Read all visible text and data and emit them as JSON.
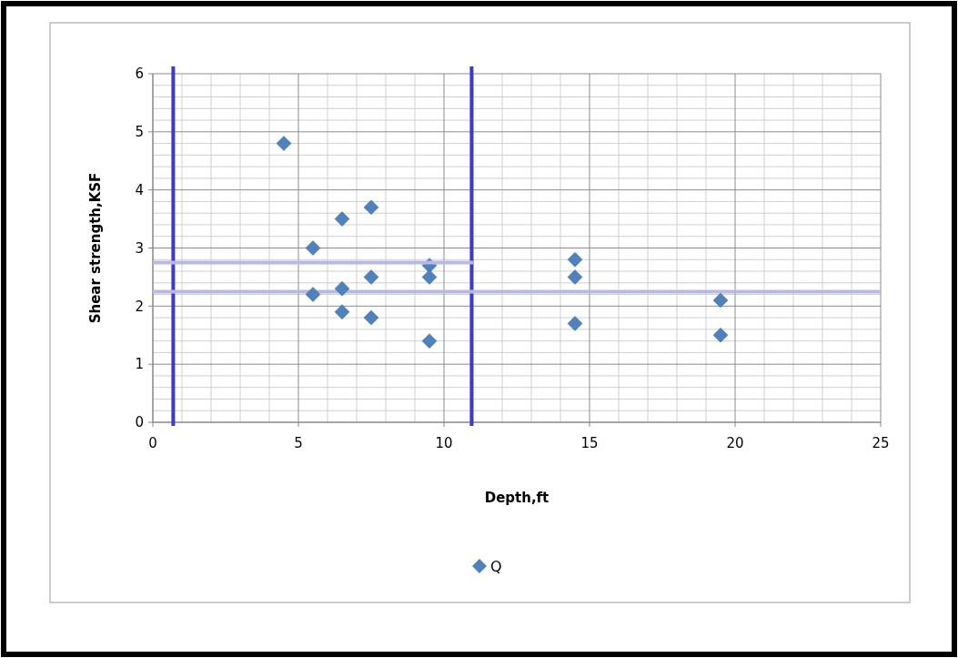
{
  "chart_data": {
    "type": "scatter",
    "xlabel": "Depth,ft",
    "ylabel": "Shear strength,KSF",
    "xlim": [
      0,
      25
    ],
    "xticks": [
      0,
      5,
      10,
      15,
      20,
      25
    ],
    "ylim": [
      0,
      6
    ],
    "yticks": [
      0,
      1,
      2,
      3,
      4,
      5,
      6
    ],
    "grid": true,
    "legend": "bottom",
    "marker": "diamond",
    "series": [
      {
        "name": "Q",
        "color": "#4f81bd",
        "x": [
          4.5,
          5.5,
          5.5,
          6.5,
          6.5,
          6.5,
          7.5,
          7.5,
          7.5,
          9.5,
          9.5,
          9.5,
          14.5,
          14.5,
          14.5,
          19.5,
          19.5
        ],
        "values": [
          4.8,
          3.0,
          2.2,
          3.5,
          2.3,
          1.9,
          3.7,
          2.5,
          1.8,
          2.7,
          2.5,
          1.4,
          2.8,
          2.5,
          1.7,
          2.1,
          1.5
        ]
      },
      {
        "type": "line",
        "marker": "none",
        "color": "#b8b8e6",
        "x": [
          0,
          11
        ],
        "values": [
          2.75,
          2.75
        ]
      }
    ],
    "ref_lines": [
      {
        "axis": "x",
        "value": 0.7,
        "color": "#3a3acc"
      },
      {
        "axis": "x",
        "value": 10.95,
        "color": "#3a3acc"
      },
      {
        "axis": "y",
        "value": 2.25,
        "color": "#b8b8e6"
      }
    ]
  }
}
